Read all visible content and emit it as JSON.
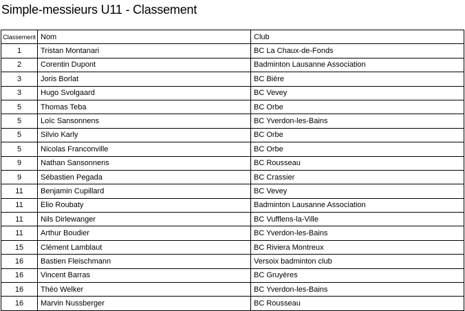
{
  "title": "Simple-messieurs U11 - Classement",
  "table": {
    "headers": [
      "Classement",
      "Nom",
      "Club"
    ],
    "rows": [
      [
        "1",
        "Tristan Montanari",
        "BC La Chaux-de-Fonds"
      ],
      [
        "2",
        "Corentin Dupont",
        "Badminton Lausanne Association"
      ],
      [
        "3",
        "Joris Borlat",
        "BC Bière"
      ],
      [
        "3",
        "Hugo Svolgaard",
        "BC Vevey"
      ],
      [
        "5",
        "Thomas Teba",
        "BC Orbe"
      ],
      [
        "5",
        "Loïc Sansonnens",
        "BC Yverdon-les-Bains"
      ],
      [
        "5",
        "Silvio Karly",
        "BC Orbe"
      ],
      [
        "5",
        "Nicolas Franconville",
        "BC Orbe"
      ],
      [
        "9",
        "Nathan Sansonnens",
        "BC Rousseau"
      ],
      [
        "9",
        "Sébastien Pegada",
        "BC Crassier"
      ],
      [
        "11",
        "Benjamin Cupillard",
        "BC Vevey"
      ],
      [
        "11",
        "Elio Roubaty",
        "Badminton Lausanne Association"
      ],
      [
        "11",
        "Nils Dirlewanger",
        "BC Vufflens-la-Ville"
      ],
      [
        "11",
        "Arthur Boudier",
        "BC Yverdon-les-Bains"
      ],
      [
        "15",
        "Clément Lamblaut",
        "BC Riviera Montreux"
      ],
      [
        "16",
        "Bastien Fleischmann",
        "Versoix badminton club"
      ],
      [
        "16",
        "Vincent Barras",
        "BC Gruyères"
      ],
      [
        "16",
        "Théo Welker",
        "BC Yverdon-les-Bains"
      ],
      [
        "16",
        "Marvin Nussberger",
        "BC Rousseau"
      ]
    ]
  }
}
